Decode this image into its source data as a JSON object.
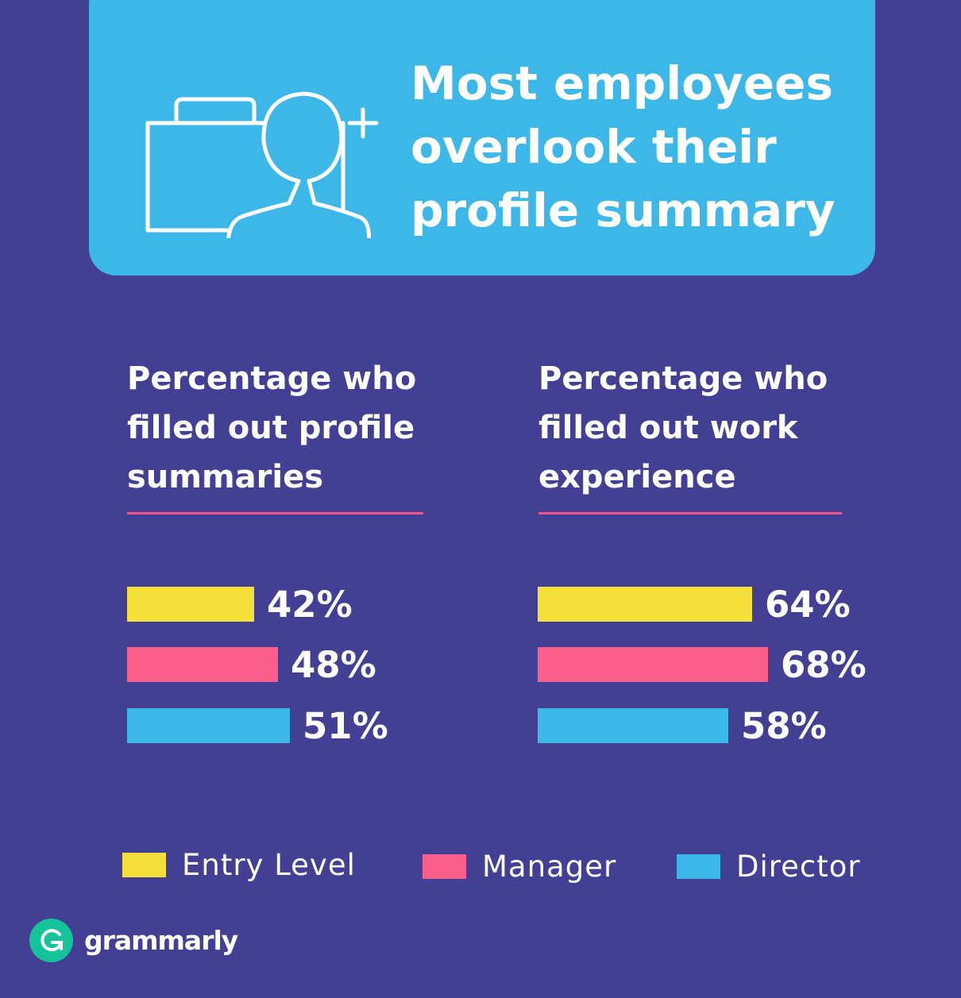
{
  "header": {
    "title_lines": [
      "Most employees",
      "overlook their",
      "profile summary"
    ],
    "icon": "briefcase-add-user-icon"
  },
  "colors": {
    "background": "#433f94",
    "header_card": "#3db7e8",
    "accent_rule": "#f0548a",
    "entry_level": "#f7df3a",
    "manager": "#fb5d8d",
    "director": "#3db7e8",
    "logo": "#15c39a"
  },
  "chart_data": [
    {
      "type": "bar",
      "orientation": "horizontal",
      "title_lines": [
        "Percentage who",
        "filled out profile",
        "summaries"
      ],
      "categories": [
        "Entry Level",
        "Manager",
        "Director"
      ],
      "values": [
        42,
        48,
        51
      ],
      "value_labels": [
        "42%",
        "48%",
        "51%"
      ],
      "grid": false,
      "legend": "bottom"
    },
    {
      "type": "bar",
      "orientation": "horizontal",
      "title_lines": [
        "Percentage who",
        "filled out work",
        "experience"
      ],
      "categories": [
        "Entry Level",
        "Manager",
        "Director"
      ],
      "values": [
        64,
        68,
        58
      ],
      "value_labels": [
        "64%",
        "68%",
        "58%"
      ],
      "grid": false,
      "legend": "bottom"
    }
  ],
  "legend": {
    "items": [
      {
        "label": "Entry Level",
        "color": "#f7df3a"
      },
      {
        "label": "Manager",
        "color": "#fb5d8d"
      },
      {
        "label": "Director",
        "color": "#3db7e8"
      }
    ]
  },
  "brand": {
    "name": "grammarly",
    "icon": "grammarly-g-icon"
  }
}
